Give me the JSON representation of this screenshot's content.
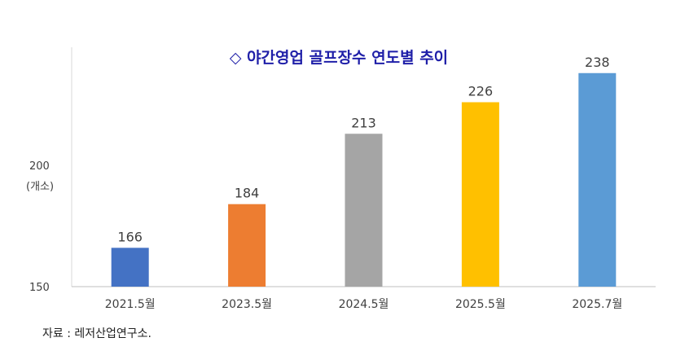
{
  "chart_data": {
    "type": "bar",
    "title": "◇ 야간영업 골프장수 연도별 추이",
    "ylabel_unit": "(개소)",
    "categories": [
      "2021.5월",
      "2023.5월",
      "2024.5월",
      "2025.5월",
      "2025.7월"
    ],
    "values": [
      166,
      184,
      213,
      226,
      238
    ],
    "colors": [
      "#4472c4",
      "#ed7d31",
      "#a5a5a5",
      "#ffc000",
      "#5b9bd5"
    ],
    "ylim": [
      150,
      250
    ],
    "yticks": [
      "150",
      "200"
    ],
    "grid": false,
    "legend": "none"
  },
  "source_note": "자료 : 레저산업연구소."
}
